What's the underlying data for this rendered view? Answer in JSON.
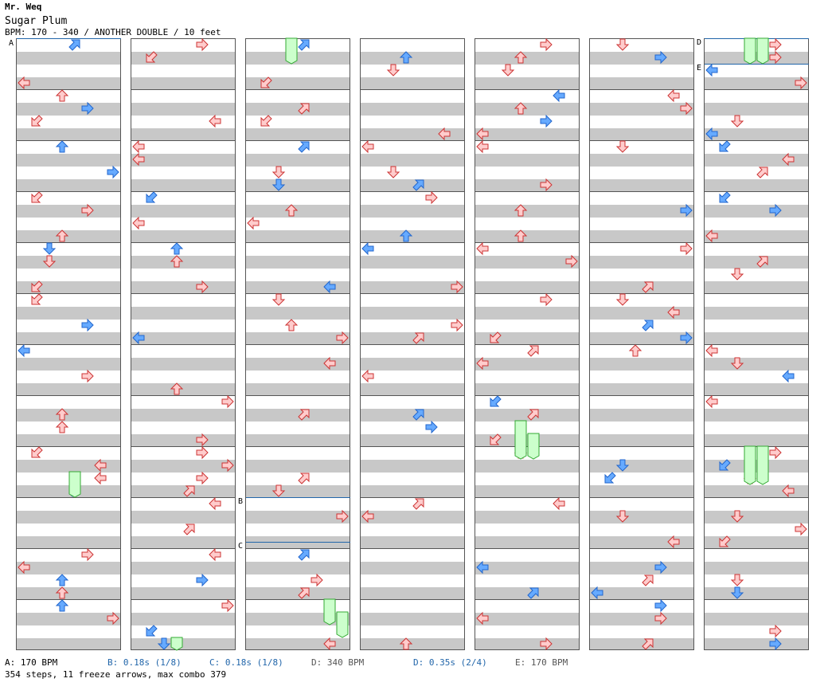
{
  "header": {
    "artist": "Mr. Weq",
    "title": "Sugar Plum",
    "info": "BPM: 170 - 340 / ANOTHER DOUBLE / 10 feet"
  },
  "markers": [
    "A",
    "B",
    "C",
    "D",
    "E"
  ],
  "legend": [
    {
      "text": "A: 170 BPM",
      "color": "#555555"
    },
    {
      "text": "B: 0.18s (1/8)",
      "color": "#2266aa"
    },
    {
      "text": "C: 0.18s (1/8)",
      "color": "#2266aa"
    },
    {
      "text": "D: 340 BPM",
      "color": "#555555"
    },
    {
      "text": "D: 0.35s (2/4)",
      "color": "#2266aa"
    },
    {
      "text": "E: 170 BPM",
      "color": "#555555"
    }
  ],
  "footer": "354 steps, 11 freeze arrows, max combo 379",
  "colors": {
    "red_fill": "#ffcccc",
    "red_stroke": "#cc3333",
    "blue_fill": "#66aaff",
    "blue_stroke": "#2266cc",
    "freeze_fill": "#ccffcc",
    "freeze_stroke": "#33aa33"
  }
}
